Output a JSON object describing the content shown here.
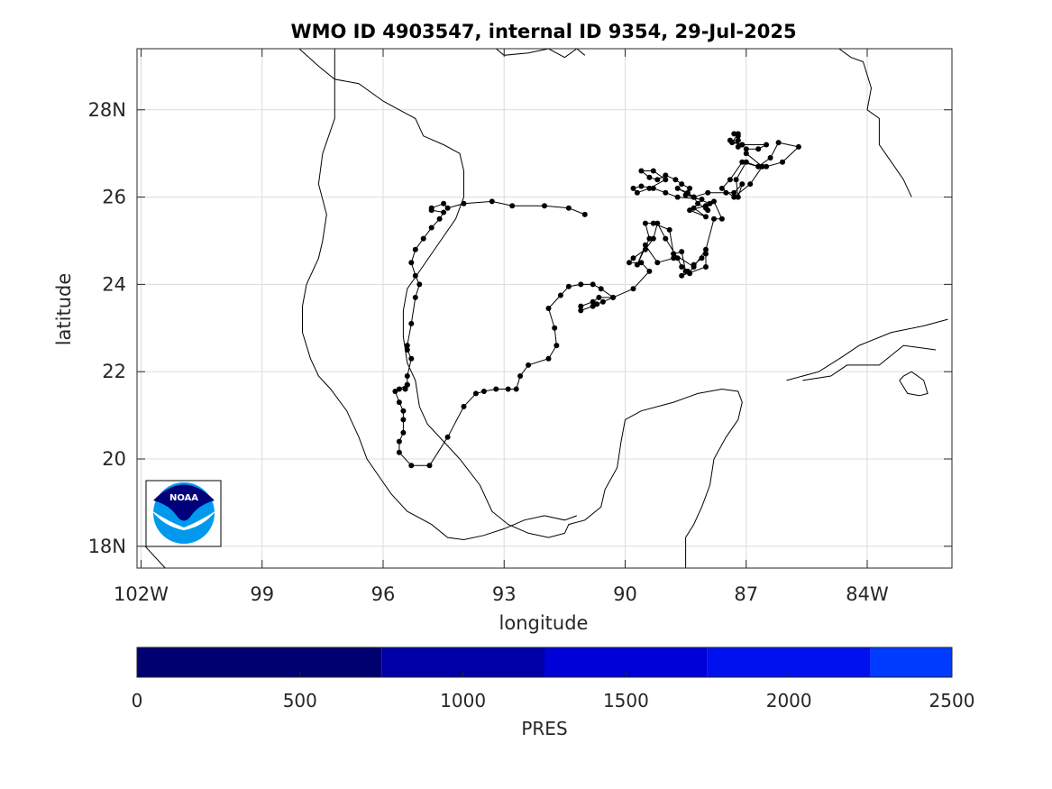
{
  "title": "WMO ID 4903547, internal ID 9354, 29-Jul-2025",
  "logo_text": "NOAA",
  "colors": {
    "track": "#000000",
    "coast": "#000000",
    "grid": "#dcdcdc",
    "logo_dark": "#00007a",
    "logo_light": "#0099ee"
  },
  "chart_data": {
    "type": "scatter",
    "title": "WMO ID 4903547, internal ID 9354, 29-Jul-2025",
    "xlabel": "longitude",
    "ylabel": "latitude",
    "xlim": [
      -102.1,
      -81.9
    ],
    "ylim": [
      17.5,
      29.4
    ],
    "grid": true,
    "x_ticks": [
      {
        "value": -102,
        "label": "102W"
      },
      {
        "value": -99,
        "label": "99"
      },
      {
        "value": -96,
        "label": "96"
      },
      {
        "value": -93,
        "label": "93"
      },
      {
        "value": -90,
        "label": "90"
      },
      {
        "value": -87,
        "label": "87"
      },
      {
        "value": -84,
        "label": "84W"
      }
    ],
    "y_ticks": [
      {
        "value": 18,
        "label": "18N"
      },
      {
        "value": 20,
        "label": "20"
      },
      {
        "value": 22,
        "label": "22"
      },
      {
        "value": 24,
        "label": "24"
      },
      {
        "value": 26,
        "label": "26"
      },
      {
        "value": 28,
        "label": "28N"
      }
    ],
    "track": [
      [
        -91.0,
        25.6
      ],
      [
        -91.4,
        25.75
      ],
      [
        -92.0,
        25.8
      ],
      [
        -92.8,
        25.8
      ],
      [
        -93.3,
        25.9
      ],
      [
        -94.0,
        25.85
      ],
      [
        -94.4,
        25.75
      ],
      [
        -94.5,
        25.85
      ],
      [
        -94.8,
        25.75
      ],
      [
        -94.8,
        25.7
      ],
      [
        -94.5,
        25.65
      ],
      [
        -94.6,
        25.5
      ],
      [
        -94.8,
        25.3
      ],
      [
        -95.0,
        25.05
      ],
      [
        -95.2,
        24.8
      ],
      [
        -95.3,
        24.5
      ],
      [
        -95.2,
        24.2
      ],
      [
        -95.1,
        24.0
      ],
      [
        -95.2,
        23.7
      ],
      [
        -95.3,
        23.1
      ],
      [
        -95.4,
        22.6
      ],
      [
        -95.4,
        22.5
      ],
      [
        -95.3,
        22.3
      ],
      [
        -95.4,
        21.9
      ],
      [
        -95.4,
        21.7
      ],
      [
        -95.45,
        21.6
      ],
      [
        -95.6,
        21.6
      ],
      [
        -95.4,
        21.7
      ],
      [
        -95.7,
        21.55
      ],
      [
        -95.6,
        21.3
      ],
      [
        -95.5,
        21.1
      ],
      [
        -95.5,
        20.9
      ],
      [
        -95.5,
        20.6
      ],
      [
        -95.6,
        20.4
      ],
      [
        -95.6,
        20.15
      ],
      [
        -95.3,
        19.85
      ],
      [
        -94.85,
        19.85
      ],
      [
        -94.4,
        20.5
      ],
      [
        -94.0,
        21.2
      ],
      [
        -93.7,
        21.5
      ],
      [
        -93.5,
        21.55
      ],
      [
        -93.2,
        21.6
      ],
      [
        -92.9,
        21.6
      ],
      [
        -92.7,
        21.6
      ],
      [
        -92.6,
        21.9
      ],
      [
        -92.4,
        22.15
      ],
      [
        -91.9,
        22.3
      ],
      [
        -91.7,
        22.6
      ],
      [
        -91.75,
        23.0
      ],
      [
        -91.9,
        23.45
      ],
      [
        -91.6,
        23.75
      ],
      [
        -91.4,
        23.95
      ],
      [
        -91.1,
        24.0
      ],
      [
        -90.8,
        24.0
      ],
      [
        -90.6,
        23.9
      ],
      [
        -90.3,
        23.7
      ],
      [
        -90.55,
        23.6
      ],
      [
        -90.7,
        23.55
      ],
      [
        -90.8,
        23.5
      ],
      [
        -91.1,
        23.4
      ],
      [
        -91.1,
        23.5
      ],
      [
        -90.8,
        23.6
      ],
      [
        -90.65,
        23.7
      ],
      [
        -90.3,
        23.7
      ],
      [
        -89.8,
        23.9
      ],
      [
        -89.4,
        24.3
      ],
      [
        -89.6,
        24.5
      ],
      [
        -89.9,
        24.5
      ],
      [
        -89.8,
        24.6
      ],
      [
        -89.5,
        24.8
      ],
      [
        -89.3,
        25.05
      ],
      [
        -89.2,
        25.4
      ],
      [
        -89.0,
        25.05
      ],
      [
        -88.7,
        24.6
      ],
      [
        -88.6,
        24.4
      ],
      [
        -88.45,
        24.3
      ],
      [
        -88.4,
        24.25
      ],
      [
        -88.3,
        24.45
      ],
      [
        -88.1,
        24.6
      ],
      [
        -88.0,
        24.7
      ],
      [
        -88.0,
        24.4
      ],
      [
        -88.6,
        24.2
      ],
      [
        -88.5,
        24.3
      ],
      [
        -88.6,
        24.75
      ],
      [
        -88.8,
        24.7
      ],
      [
        -88.8,
        24.6
      ],
      [
        -89.2,
        24.5
      ],
      [
        -89.5,
        24.9
      ],
      [
        -89.7,
        24.45
      ],
      [
        -89.4,
        25.05
      ],
      [
        -89.5,
        25.4
      ],
      [
        -89.3,
        25.4
      ],
      [
        -88.9,
        25.25
      ],
      [
        -88.8,
        24.7
      ],
      [
        -88.3,
        24.4
      ],
      [
        -88.0,
        24.8
      ],
      [
        -87.8,
        25.5
      ],
      [
        -87.6,
        25.5
      ],
      [
        -87.8,
        25.9
      ],
      [
        -88.0,
        25.8
      ],
      [
        -88.4,
        25.7
      ],
      [
        -88.0,
        25.55
      ],
      [
        -88.3,
        25.75
      ],
      [
        -88.1,
        25.95
      ],
      [
        -88.7,
        26.0
      ],
      [
        -89.0,
        26.1
      ],
      [
        -89.3,
        26.2
      ],
      [
        -89.6,
        26.25
      ],
      [
        -89.8,
        26.2
      ],
      [
        -89.7,
        26.1
      ],
      [
        -89.4,
        26.2
      ],
      [
        -89.0,
        26.4
      ],
      [
        -89.3,
        26.6
      ],
      [
        -89.6,
        26.6
      ],
      [
        -89.4,
        26.45
      ],
      [
        -89.2,
        26.4
      ],
      [
        -89.0,
        26.5
      ],
      [
        -88.75,
        26.4
      ],
      [
        -88.6,
        26.3
      ],
      [
        -88.4,
        26.2
      ],
      [
        -88.5,
        26.05
      ],
      [
        -88.3,
        26.0
      ],
      [
        -88.2,
        25.85
      ],
      [
        -88.0,
        25.75
      ],
      [
        -87.95,
        25.7
      ],
      [
        -88.0,
        25.8
      ],
      [
        -87.9,
        25.85
      ],
      [
        -88.3,
        26.0
      ],
      [
        -88.7,
        26.2
      ],
      [
        -88.45,
        26.1
      ],
      [
        -88.3,
        26.0
      ],
      [
        -87.95,
        26.1
      ],
      [
        -87.5,
        26.1
      ],
      [
        -87.3,
        26.1
      ],
      [
        -87.1,
        26.3
      ],
      [
        -87.2,
        26.0
      ],
      [
        -87.25,
        26.4
      ],
      [
        -87.0,
        26.8
      ],
      [
        -86.7,
        26.7
      ],
      [
        -86.5,
        26.7
      ],
      [
        -86.1,
        26.8
      ],
      [
        -85.7,
        27.15
      ],
      [
        -86.2,
        27.25
      ],
      [
        -86.4,
        26.9
      ],
      [
        -86.7,
        26.7
      ],
      [
        -87.1,
        26.8
      ],
      [
        -87.4,
        26.4
      ],
      [
        -87.6,
        26.2
      ],
      [
        -87.3,
        26.0
      ],
      [
        -86.9,
        26.3
      ],
      [
        -86.6,
        26.7
      ],
      [
        -87.0,
        27.0
      ],
      [
        -87.0,
        27.1
      ],
      [
        -86.7,
        27.1
      ],
      [
        -86.5,
        27.2
      ],
      [
        -87.1,
        27.2
      ],
      [
        -87.4,
        27.3
      ],
      [
        -87.2,
        27.3
      ],
      [
        -87.2,
        27.4
      ],
      [
        -87.3,
        27.45
      ],
      [
        -87.2,
        27.45
      ],
      [
        -87.35,
        27.25
      ],
      [
        -87.1,
        27.2
      ],
      [
        -87.2,
        27.15
      ]
    ],
    "coastlines": [
      [
        [
          -98.2,
          29.5
        ],
        [
          -97.9,
          29.25
        ],
        [
          -97.6,
          29.0
        ],
        [
          -97.2,
          28.7
        ],
        [
          -96.6,
          28.6
        ],
        [
          -96.0,
          28.2
        ],
        [
          -95.6,
          28.0
        ],
        [
          -95.2,
          27.8
        ],
        [
          -95.0,
          27.4
        ],
        [
          -94.5,
          27.2
        ],
        [
          -94.1,
          27.0
        ],
        [
          -94.0,
          26.6
        ],
        [
          -94.0,
          26.0
        ],
        [
          -94.2,
          25.5
        ],
        [
          -94.5,
          25.1
        ],
        [
          -94.8,
          24.7
        ],
        [
          -95.1,
          24.3
        ],
        [
          -95.4,
          23.9
        ],
        [
          -95.5,
          23.4
        ],
        [
          -95.5,
          22.8
        ],
        [
          -95.4,
          22.2
        ],
        [
          -95.2,
          21.8
        ],
        [
          -95.1,
          21.2
        ],
        [
          -94.9,
          20.8
        ],
        [
          -94.5,
          20.4
        ],
        [
          -94.1,
          20.0
        ],
        [
          -93.6,
          19.4
        ],
        [
          -93.3,
          18.8
        ],
        [
          -92.9,
          18.5
        ],
        [
          -92.4,
          18.3
        ],
        [
          -91.9,
          18.2
        ],
        [
          -91.5,
          18.3
        ],
        [
          -91.4,
          18.5
        ],
        [
          -91.0,
          18.6
        ],
        [
          -90.6,
          18.9
        ],
        [
          -90.5,
          19.3
        ],
        [
          -90.2,
          19.8
        ],
        [
          -90.1,
          20.4
        ],
        [
          -90.0,
          20.9
        ],
        [
          -89.6,
          21.1
        ],
        [
          -88.8,
          21.3
        ],
        [
          -88.2,
          21.5
        ],
        [
          -87.6,
          21.6
        ],
        [
          -87.2,
          21.55
        ],
        [
          -87.1,
          21.3
        ],
        [
          -87.2,
          20.9
        ],
        [
          -87.5,
          20.5
        ],
        [
          -87.8,
          20.0
        ],
        [
          -87.9,
          19.4
        ],
        [
          -88.1,
          18.9
        ],
        [
          -88.3,
          18.5
        ],
        [
          -88.5,
          18.2
        ],
        [
          -88.5,
          17.5
        ]
      ],
      [
        [
          -97.2,
          29.4
        ],
        [
          -97.2,
          27.8
        ],
        [
          -97.5,
          27.0
        ],
        [
          -97.6,
          26.3
        ],
        [
          -97.4,
          25.6
        ],
        [
          -97.5,
          25.0
        ],
        [
          -97.6,
          24.6
        ],
        [
          -97.9,
          24.0
        ],
        [
          -98.0,
          23.5
        ],
        [
          -98.0,
          22.9
        ],
        [
          -97.8,
          22.3
        ],
        [
          -97.6,
          21.9
        ],
        [
          -97.3,
          21.6
        ],
        [
          -96.9,
          21.1
        ],
        [
          -96.6,
          20.5
        ],
        [
          -96.4,
          20.0
        ],
        [
          -96.1,
          19.6
        ],
        [
          -95.8,
          19.2
        ],
        [
          -95.4,
          18.8
        ],
        [
          -94.8,
          18.5
        ],
        [
          -94.4,
          18.2
        ],
        [
          -94.0,
          18.15
        ],
        [
          -93.5,
          18.25
        ],
        [
          -93.0,
          18.4
        ],
        [
          -92.5,
          18.6
        ],
        [
          -92.0,
          18.7
        ],
        [
          -91.5,
          18.6
        ],
        [
          -91.2,
          18.7
        ]
      ],
      [
        [
          -93.2,
          29.4
        ],
        [
          -93.0,
          29.25
        ],
        [
          -92.4,
          29.3
        ],
        [
          -91.9,
          29.4
        ],
        [
          -91.5,
          29.2
        ],
        [
          -91.2,
          29.4
        ],
        [
          -91.0,
          29.25
        ]
      ],
      [
        [
          -84.7,
          29.4
        ],
        [
          -84.4,
          29.2
        ],
        [
          -84.1,
          29.1
        ],
        [
          -83.9,
          28.5
        ],
        [
          -84.0,
          28.0
        ],
        [
          -83.7,
          27.8
        ],
        [
          -83.7,
          27.2
        ],
        [
          -83.4,
          26.8
        ],
        [
          -83.1,
          26.4
        ],
        [
          -82.9,
          26.0
        ]
      ],
      [
        [
          -86.0,
          21.8
        ],
        [
          -85.2,
          22.0
        ],
        [
          -84.6,
          22.35
        ],
        [
          -84.2,
          22.6
        ],
        [
          -83.4,
          22.9
        ],
        [
          -82.6,
          23.05
        ],
        [
          -82.0,
          23.2
        ]
      ],
      [
        [
          -85.6,
          21.8
        ],
        [
          -84.9,
          21.9
        ],
        [
          -84.5,
          22.15
        ],
        [
          -83.7,
          22.15
        ],
        [
          -83.1,
          22.6
        ],
        [
          -82.3,
          22.5
        ]
      ],
      [
        [
          -83.2,
          21.8
        ],
        [
          -83.0,
          21.5
        ],
        [
          -82.7,
          21.45
        ],
        [
          -82.5,
          21.5
        ],
        [
          -82.6,
          21.8
        ],
        [
          -82.9,
          22.0
        ],
        [
          -83.1,
          21.9
        ],
        [
          -83.2,
          21.8
        ]
      ],
      [
        [
          -101.9,
          18.0
        ],
        [
          -101.4,
          17.5
        ]
      ]
    ]
  },
  "colorbar": {
    "label": "PRES",
    "min": 0,
    "max": 2500,
    "ticks": [
      {
        "value": 0,
        "label": "0"
      },
      {
        "value": 500,
        "label": "500"
      },
      {
        "value": 1000,
        "label": "1000"
      },
      {
        "value": 1500,
        "label": "1500"
      },
      {
        "value": 2000,
        "label": "2000"
      },
      {
        "value": 2500,
        "label": "2500"
      }
    ],
    "segments": [
      {
        "from": 0,
        "to": 750,
        "color": "#000070"
      },
      {
        "from": 750,
        "to": 1250,
        "color": "#0000a8"
      },
      {
        "from": 1250,
        "to": 1750,
        "color": "#0000d8"
      },
      {
        "from": 1750,
        "to": 2250,
        "color": "#0011f0"
      },
      {
        "from": 2250,
        "to": 2500,
        "color": "#003cff"
      }
    ]
  }
}
